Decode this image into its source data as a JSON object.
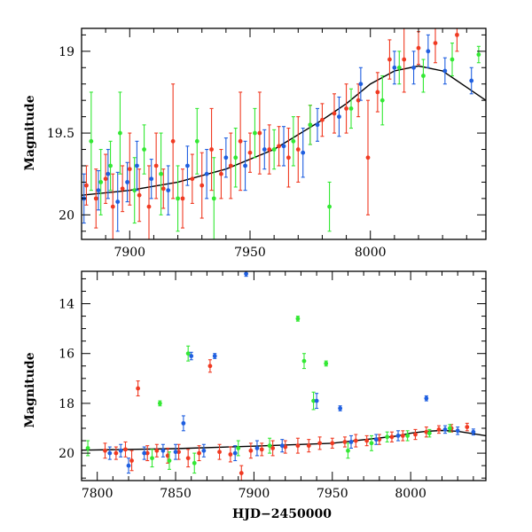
{
  "colors": {
    "blue": "#1f5fe0",
    "green": "#33e833",
    "red": "#f03a22",
    "curve": "#000000"
  },
  "chart_data": [
    {
      "type": "scatter",
      "title": "",
      "xlabel": "",
      "ylabel": "Magnitude",
      "xlim": [
        7880,
        8048
      ],
      "ylim": [
        20.15,
        18.86
      ],
      "y_inverted": true,
      "x_ticks": [
        7900,
        7950,
        8000
      ],
      "y_ticks": [
        19,
        19.5,
        20
      ],
      "model_curve": {
        "x": [
          7880,
          7900,
          7920,
          7940,
          7960,
          7980,
          7990,
          8000,
          8010,
          8020,
          8030,
          8040,
          8048
        ],
        "y": [
          19.88,
          19.85,
          19.8,
          19.72,
          19.6,
          19.42,
          19.32,
          19.2,
          19.12,
          19.09,
          19.12,
          19.22,
          19.3
        ]
      },
      "series": [
        {
          "color": "red",
          "points": [
            {
              "x": 7882,
              "y": 19.82,
              "e": 0.12
            },
            {
              "x": 7886,
              "y": 19.9,
              "e": 0.18
            },
            {
              "x": 7890,
              "y": 19.78,
              "e": 0.15
            },
            {
              "x": 7893,
              "y": 19.95,
              "e": 0.2
            },
            {
              "x": 7897,
              "y": 19.84,
              "e": 0.14
            },
            {
              "x": 7900,
              "y": 19.72,
              "e": 0.22
            },
            {
              "x": 7904,
              "y": 19.88,
              "e": 0.16
            },
            {
              "x": 7908,
              "y": 19.95,
              "e": 0.25
            },
            {
              "x": 7911,
              "y": 19.7,
              "e": 0.2
            },
            {
              "x": 7914,
              "y": 19.84,
              "e": 0.12
            },
            {
              "x": 7918,
              "y": 19.55,
              "e": 0.35
            },
            {
              "x": 7922,
              "y": 19.9,
              "e": 0.18
            },
            {
              "x": 7926,
              "y": 19.78,
              "e": 0.15
            },
            {
              "x": 7930,
              "y": 19.82,
              "e": 0.2
            },
            {
              "x": 7934,
              "y": 19.6,
              "e": 0.25
            },
            {
              "x": 7938,
              "y": 19.75,
              "e": 0.15
            },
            {
              "x": 7942,
              "y": 19.7,
              "e": 0.2
            },
            {
              "x": 7946,
              "y": 19.55,
              "e": 0.3
            },
            {
              "x": 7950,
              "y": 19.62,
              "e": 0.12
            },
            {
              "x": 7954,
              "y": 19.5,
              "e": 0.25
            },
            {
              "x": 7958,
              "y": 19.6,
              "e": 0.15
            },
            {
              "x": 7962,
              "y": 19.58,
              "e": 0.12
            },
            {
              "x": 7966,
              "y": 19.65,
              "e": 0.18
            },
            {
              "x": 7970,
              "y": 19.6,
              "e": 0.2
            },
            {
              "x": 7975,
              "y": 19.45,
              "e": 0.12
            },
            {
              "x": 7980,
              "y": 19.42,
              "e": 0.1
            },
            {
              "x": 7985,
              "y": 19.38,
              "e": 0.12
            },
            {
              "x": 7990,
              "y": 19.35,
              "e": 0.15
            },
            {
              "x": 7995,
              "y": 19.3,
              "e": 0.1
            },
            {
              "x": 7999,
              "y": 19.65,
              "e": 0.35
            },
            {
              "x": 8003,
              "y": 19.25,
              "e": 0.12
            },
            {
              "x": 8008,
              "y": 19.05,
              "e": 0.12
            },
            {
              "x": 8014,
              "y": 19.05,
              "e": 0.2
            },
            {
              "x": 8020,
              "y": 18.98,
              "e": 0.1
            },
            {
              "x": 8027,
              "y": 18.95,
              "e": 0.12
            },
            {
              "x": 8036,
              "y": 18.9,
              "e": 0.1
            }
          ]
        },
        {
          "color": "green",
          "points": [
            {
              "x": 7884,
              "y": 19.55,
              "e": 0.3
            },
            {
              "x": 7888,
              "y": 19.8,
              "e": 0.2
            },
            {
              "x": 7892,
              "y": 19.7,
              "e": 0.15
            },
            {
              "x": 7896,
              "y": 19.5,
              "e": 0.25
            },
            {
              "x": 7902,
              "y": 19.85,
              "e": 0.2
            },
            {
              "x": 7906,
              "y": 19.6,
              "e": 0.15
            },
            {
              "x": 7913,
              "y": 19.75,
              "e": 0.25
            },
            {
              "x": 7920,
              "y": 19.9,
              "e": 0.2
            },
            {
              "x": 7928,
              "y": 19.55,
              "e": 0.2
            },
            {
              "x": 7935,
              "y": 19.9,
              "e": 0.25
            },
            {
              "x": 7944,
              "y": 19.65,
              "e": 0.18
            },
            {
              "x": 7952,
              "y": 19.5,
              "e": 0.15
            },
            {
              "x": 7960,
              "y": 19.6,
              "e": 0.12
            },
            {
              "x": 7968,
              "y": 19.55,
              "e": 0.15
            },
            {
              "x": 7975,
              "y": 19.45,
              "e": 0.12
            },
            {
              "x": 7983,
              "y": 19.95,
              "e": 0.15
            },
            {
              "x": 7992,
              "y": 19.35,
              "e": 0.12
            },
            {
              "x": 8005,
              "y": 19.3,
              "e": 0.15
            },
            {
              "x": 8012,
              "y": 19.1,
              "e": 0.1
            },
            {
              "x": 8022,
              "y": 19.15,
              "e": 0.1
            },
            {
              "x": 8034,
              "y": 19.05,
              "e": 0.1
            },
            {
              "x": 8045,
              "y": 19.02,
              "e": 0.05
            }
          ]
        },
        {
          "color": "blue",
          "points": [
            {
              "x": 7881,
              "y": 19.9,
              "e": 0.15
            },
            {
              "x": 7887,
              "y": 19.85,
              "e": 0.12
            },
            {
              "x": 7891,
              "y": 19.75,
              "e": 0.15
            },
            {
              "x": 7895,
              "y": 19.92,
              "e": 0.18
            },
            {
              "x": 7899,
              "y": 19.8,
              "e": 0.12
            },
            {
              "x": 7903,
              "y": 19.7,
              "e": 0.15
            },
            {
              "x": 7909,
              "y": 19.78,
              "e": 0.12
            },
            {
              "x": 7916,
              "y": 19.85,
              "e": 0.15
            },
            {
              "x": 7924,
              "y": 19.7,
              "e": 0.12
            },
            {
              "x": 7932,
              "y": 19.75,
              "e": 0.15
            },
            {
              "x": 7940,
              "y": 19.65,
              "e": 0.12
            },
            {
              "x": 7948,
              "y": 19.7,
              "e": 0.15
            },
            {
              "x": 7956,
              "y": 19.6,
              "e": 0.12
            },
            {
              "x": 7964,
              "y": 19.58,
              "e": 0.12
            },
            {
              "x": 7972,
              "y": 19.62,
              "e": 0.15
            },
            {
              "x": 7978,
              "y": 19.45,
              "e": 0.1
            },
            {
              "x": 7987,
              "y": 19.4,
              "e": 0.12
            },
            {
              "x": 7996,
              "y": 19.2,
              "e": 0.1
            },
            {
              "x": 8010,
              "y": 19.1,
              "e": 0.1
            },
            {
              "x": 8018,
              "y": 19.1,
              "e": 0.1
            },
            {
              "x": 8024,
              "y": 19.0,
              "e": 0.1
            },
            {
              "x": 8031,
              "y": 19.12,
              "e": 0.08
            },
            {
              "x": 8042,
              "y": 19.18,
              "e": 0.08
            }
          ]
        }
      ]
    },
    {
      "type": "scatter",
      "title": "",
      "xlabel": "HJD−2450000",
      "ylabel": "Magnitude",
      "xlim": [
        7790,
        8048
      ],
      "ylim": [
        21.1,
        12.7
      ],
      "y_inverted": true,
      "x_ticks": [
        7800,
        7850,
        7900,
        7950,
        8000
      ],
      "y_ticks": [
        14,
        16,
        18,
        20
      ],
      "model_curve": {
        "x": [
          7790,
          7850,
          7900,
          7950,
          7990,
          8000,
          8010,
          8020,
          8030,
          8040,
          8048
        ],
        "y": [
          19.88,
          19.82,
          19.72,
          19.6,
          19.32,
          19.2,
          19.12,
          19.09,
          19.12,
          19.22,
          19.3
        ]
      },
      "series": [
        {
          "color": "red",
          "points": [
            {
              "x": 7805,
              "y": 19.9,
              "e": 0.3
            },
            {
              "x": 7812,
              "y": 20.0,
              "e": 0.25
            },
            {
              "x": 7818,
              "y": 19.85,
              "e": 0.3
            },
            {
              "x": 7822,
              "y": 20.3,
              "e": 0.4
            },
            {
              "x": 7826,
              "y": 17.4,
              "e": 0.3
            },
            {
              "x": 7832,
              "y": 20.0,
              "e": 0.3
            },
            {
              "x": 7838,
              "y": 19.9,
              "e": 0.25
            },
            {
              "x": 7845,
              "y": 20.1,
              "e": 0.3
            },
            {
              "x": 7852,
              "y": 19.95,
              "e": 0.3
            },
            {
              "x": 7858,
              "y": 20.2,
              "e": 0.35
            },
            {
              "x": 7865,
              "y": 20.0,
              "e": 0.3
            },
            {
              "x": 7872,
              "y": 16.5,
              "e": 0.25
            },
            {
              "x": 7878,
              "y": 19.95,
              "e": 0.3
            },
            {
              "x": 7885,
              "y": 20.05,
              "e": 0.3
            },
            {
              "x": 7892,
              "y": 20.8,
              "e": 0.3
            },
            {
              "x": 7898,
              "y": 19.9,
              "e": 0.3
            },
            {
              "x": 7905,
              "y": 19.85,
              "e": 0.25
            },
            {
              "x": 7912,
              "y": 19.8,
              "e": 0.3
            },
            {
              "x": 7920,
              "y": 19.75,
              "e": 0.25
            },
            {
              "x": 7928,
              "y": 19.7,
              "e": 0.3
            },
            {
              "x": 7935,
              "y": 19.7,
              "e": 0.25
            },
            {
              "x": 7942,
              "y": 19.6,
              "e": 0.25
            },
            {
              "x": 7950,
              "y": 19.6,
              "e": 0.2
            },
            {
              "x": 7958,
              "y": 19.55,
              "e": 0.2
            },
            {
              "x": 7965,
              "y": 19.5,
              "e": 0.25
            },
            {
              "x": 7972,
              "y": 19.5,
              "e": 0.2
            },
            {
              "x": 7980,
              "y": 19.45,
              "e": 0.2
            },
            {
              "x": 7988,
              "y": 19.35,
              "e": 0.2
            },
            {
              "x": 7995,
              "y": 19.3,
              "e": 0.2
            },
            {
              "x": 8003,
              "y": 19.25,
              "e": 0.2
            },
            {
              "x": 8010,
              "y": 19.15,
              "e": 0.2
            },
            {
              "x": 8018,
              "y": 19.05,
              "e": 0.15
            },
            {
              "x": 8026,
              "y": 19.0,
              "e": 0.15
            },
            {
              "x": 8036,
              "y": 18.95,
              "e": 0.15
            }
          ]
        },
        {
          "color": "green",
          "points": [
            {
              "x": 7794,
              "y": 19.8,
              "e": 0.3
            },
            {
              "x": 7835,
              "y": 20.2,
              "e": 0.35
            },
            {
              "x": 7840,
              "y": 18.0,
              "e": 0.1
            },
            {
              "x": 7846,
              "y": 20.3,
              "e": 0.35
            },
            {
              "x": 7858,
              "y": 16.0,
              "e": 0.3
            },
            {
              "x": 7862,
              "y": 20.4,
              "e": 0.4
            },
            {
              "x": 7890,
              "y": 19.8,
              "e": 0.3
            },
            {
              "x": 7910,
              "y": 19.7,
              "e": 0.3
            },
            {
              "x": 7928,
              "y": 14.6,
              "e": 0.1
            },
            {
              "x": 7932,
              "y": 16.3,
              "e": 0.3
            },
            {
              "x": 7938,
              "y": 17.9,
              "e": 0.35
            },
            {
              "x": 7946,
              "y": 16.4,
              "e": 0.1
            },
            {
              "x": 7960,
              "y": 19.9,
              "e": 0.3
            },
            {
              "x": 7975,
              "y": 19.6,
              "e": 0.3
            },
            {
              "x": 7985,
              "y": 19.35,
              "e": 0.2
            },
            {
              "x": 7998,
              "y": 19.3,
              "e": 0.2
            },
            {
              "x": 8012,
              "y": 19.2,
              "e": 0.15
            },
            {
              "x": 8025,
              "y": 19.0,
              "e": 0.15
            }
          ]
        },
        {
          "color": "blue",
          "points": [
            {
              "x": 7808,
              "y": 20.0,
              "e": 0.25
            },
            {
              "x": 7815,
              "y": 19.9,
              "e": 0.25
            },
            {
              "x": 7820,
              "y": 20.5,
              "e": 0.3
            },
            {
              "x": 7830,
              "y": 20.0,
              "e": 0.25
            },
            {
              "x": 7842,
              "y": 19.9,
              "e": 0.25
            },
            {
              "x": 7850,
              "y": 19.95,
              "e": 0.3
            },
            {
              "x": 7855,
              "y": 18.8,
              "e": 0.3
            },
            {
              "x": 7860,
              "y": 16.1,
              "e": 0.15
            },
            {
              "x": 7868,
              "y": 19.9,
              "e": 0.25
            },
            {
              "x": 7875,
              "y": 16.1,
              "e": 0.1
            },
            {
              "x": 7888,
              "y": 20.0,
              "e": 0.3
            },
            {
              "x": 7895,
              "y": 12.8,
              "e": 0.1
            },
            {
              "x": 7902,
              "y": 19.8,
              "e": 0.3
            },
            {
              "x": 7918,
              "y": 19.7,
              "e": 0.25
            },
            {
              "x": 7940,
              "y": 17.9,
              "e": 0.3
            },
            {
              "x": 7955,
              "y": 18.2,
              "e": 0.1
            },
            {
              "x": 7962,
              "y": 19.55,
              "e": 0.25
            },
            {
              "x": 7978,
              "y": 19.45,
              "e": 0.2
            },
            {
              "x": 7992,
              "y": 19.3,
              "e": 0.2
            },
            {
              "x": 8010,
              "y": 17.8,
              "e": 0.1
            },
            {
              "x": 8022,
              "y": 19.05,
              "e": 0.15
            },
            {
              "x": 8030,
              "y": 19.1,
              "e": 0.15
            },
            {
              "x": 8040,
              "y": 19.15,
              "e": 0.12
            }
          ]
        }
      ]
    }
  ]
}
